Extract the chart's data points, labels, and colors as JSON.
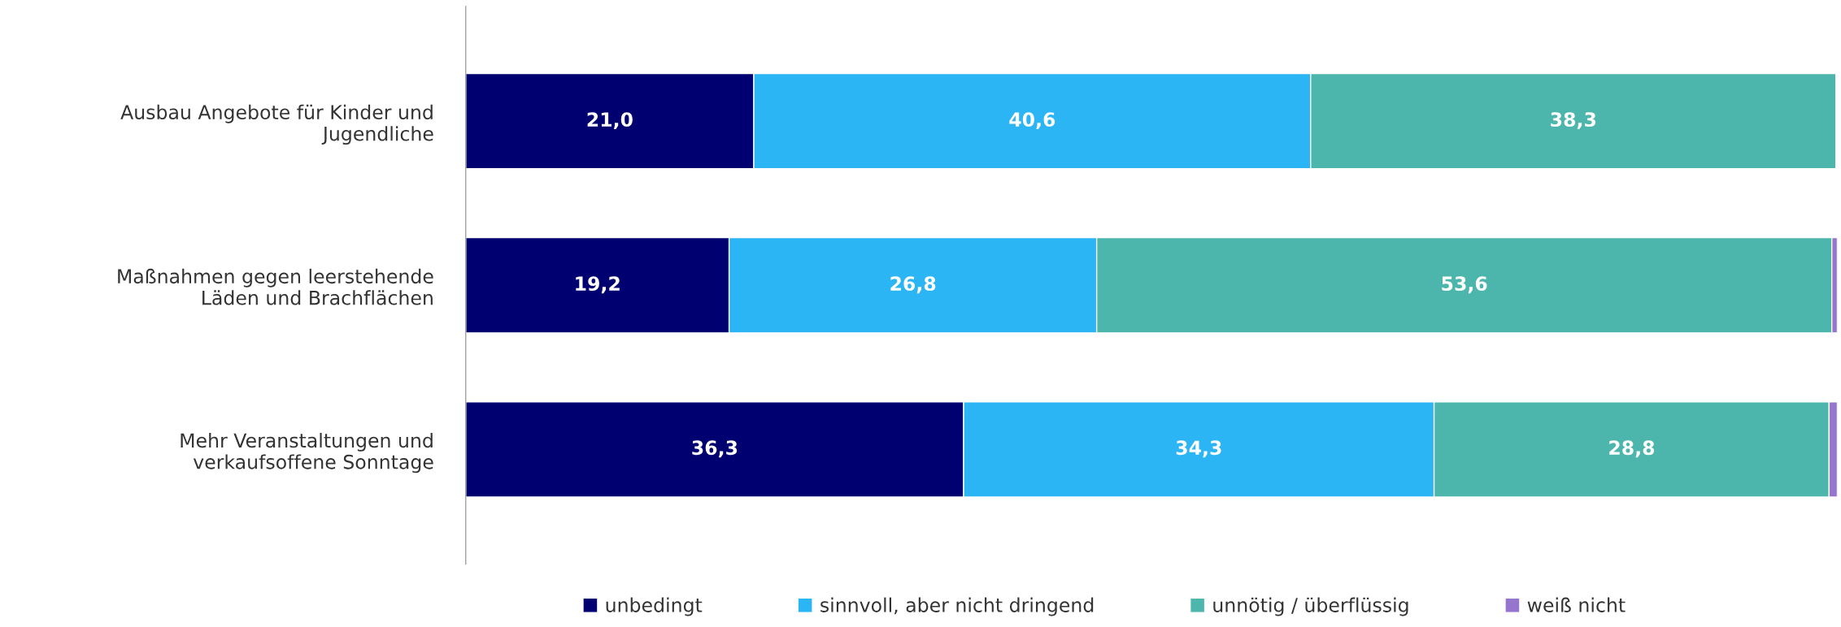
{
  "chart_data": {
    "type": "bar",
    "orientation": "horizontal",
    "stacked": true,
    "categories": [
      "Ausbau Angebote für Kinder und\nJugendliche",
      "Maßnahmen gegen leerstehende\nLäden und Brachflächen",
      "Mehr Veranstaltungen und\nverkaufsoffene Sonntage"
    ],
    "series": [
      {
        "name": "unbedingt",
        "color": "#000070",
        "values": [
          21.0,
          19.2,
          36.3
        ],
        "value_labels": [
          "21,0",
          "19,2",
          "36,3"
        ]
      },
      {
        "name": "sinnvoll, aber nicht dringend",
        "color": "#2bb5f5",
        "values": [
          40.6,
          26.8,
          34.3
        ],
        "value_labels": [
          "40,6",
          "26,8",
          "34,3"
        ]
      },
      {
        "name": "unnötig / überflüssig",
        "color": "#4db6ac",
        "values": [
          38.3,
          53.6,
          28.8
        ],
        "value_labels": [
          "38,3",
          "53,6",
          "28,8"
        ]
      },
      {
        "name": "weiß nicht",
        "color": "#9575cd",
        "values": [
          null,
          0.4,
          0.6
        ],
        "value_labels": [
          null,
          null,
          null
        ]
      }
    ],
    "legend": "bottom"
  }
}
